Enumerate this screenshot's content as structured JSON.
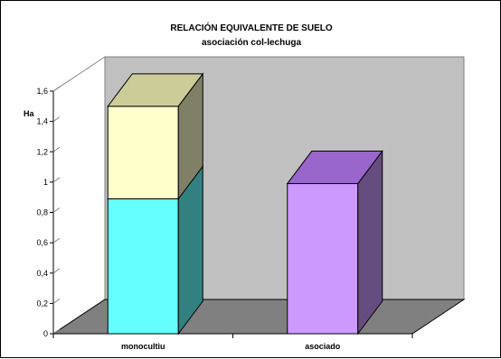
{
  "chart_data": {
    "type": "bar",
    "subtype": "3d-stacked-column",
    "title": "RELACIÓN EQUIVALENTE DE SUELO",
    "subtitle": "asociación col-lechuga",
    "ylabel": "Ha",
    "xlabel": "",
    "ylim": [
      0,
      1.6
    ],
    "yticks": [
      "0",
      "0,2",
      "0,4",
      "0,6",
      "0,8",
      "1",
      "1,2",
      "1,4",
      "1,6"
    ],
    "categories": [
      "monocultiu",
      "asociado"
    ],
    "grid": false,
    "legend": "none",
    "bars": [
      {
        "category": "monocultiu",
        "segments": [
          {
            "value": 0.89,
            "color": "#66FFFF",
            "side": "#338080",
            "top": "#B3FFFF"
          },
          {
            "value": 0.61,
            "color": "#FFFFCC",
            "side": "#808066",
            "top": "#CCCC99"
          }
        ]
      },
      {
        "category": "asociado",
        "segments": [
          {
            "value": 0.99,
            "color": "#CC99FF",
            "side": "#664D80",
            "top": "#9966CC"
          }
        ]
      }
    ],
    "colors": {
      "back_wall": "#C0C0C0",
      "floor": "#808080",
      "side_wall": "#FFFFFF"
    }
  }
}
